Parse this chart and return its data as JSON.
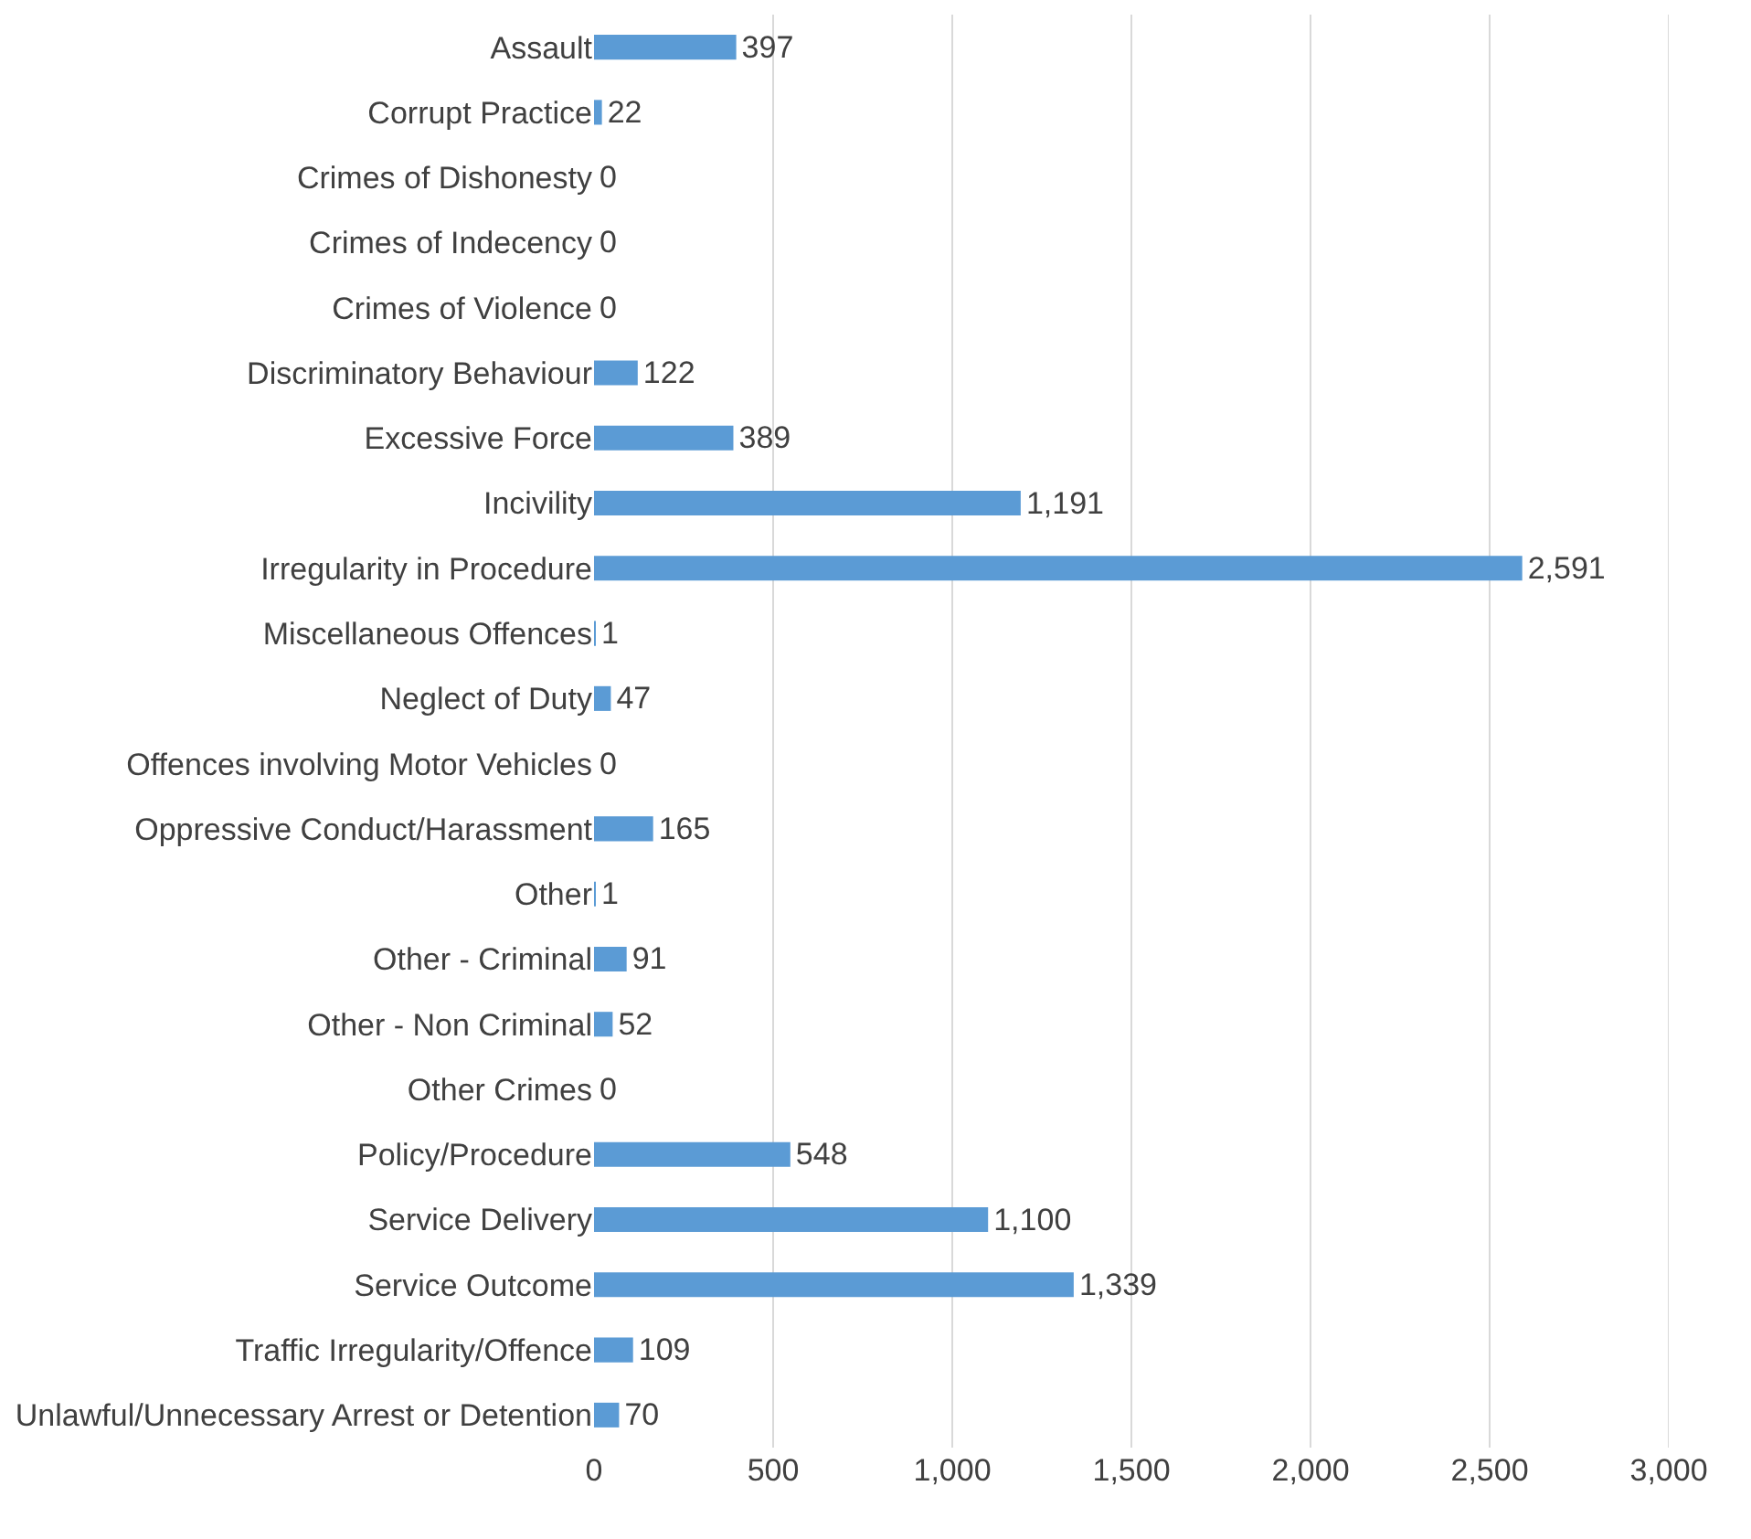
{
  "chart_data": {
    "type": "bar",
    "orientation": "horizontal",
    "categories": [
      "Assault",
      "Corrupt Practice",
      "Crimes of Dishonesty",
      "Crimes of Indecency",
      "Crimes of Violence",
      "Discriminatory Behaviour",
      "Excessive Force",
      "Incivility",
      "Irregularity in Procedure",
      "Miscellaneous Offences",
      "Neglect of Duty",
      "Offences involving Motor Vehicles",
      "Oppressive Conduct/Harassment",
      "Other",
      "Other - Criminal",
      "Other - Non Criminal",
      "Other Crimes",
      "Policy/Procedure",
      "Service Delivery",
      "Service Outcome",
      "Traffic Irregularity/Offence",
      "Unlawful/Unnecessary Arrest or Detention"
    ],
    "values": [
      397,
      22,
      0,
      0,
      0,
      122,
      389,
      1191,
      2591,
      1,
      47,
      0,
      165,
      1,
      91,
      52,
      0,
      548,
      1100,
      1339,
      109,
      70
    ],
    "value_labels": [
      "397",
      "22",
      "0",
      "0",
      "0",
      "122",
      "389",
      "1,191",
      "2,591",
      "1",
      "47",
      "0",
      "165",
      "1",
      "91",
      "52",
      "0",
      "548",
      "1,100",
      "1,339",
      "109",
      "70"
    ],
    "color": "#5b9bd5",
    "xlim": [
      0,
      3000
    ],
    "xticks": [
      0,
      500,
      {
        "value": 1000,
        "label": "1,000"
      },
      {
        "value": 1500,
        "label": "1,500"
      },
      {
        "value": 2000,
        "label": "2,000"
      },
      {
        "value": 2500,
        "label": "2,500"
      },
      {
        "value": 3000,
        "label": "3,000"
      }
    ],
    "grid": "x",
    "legend": false
  }
}
